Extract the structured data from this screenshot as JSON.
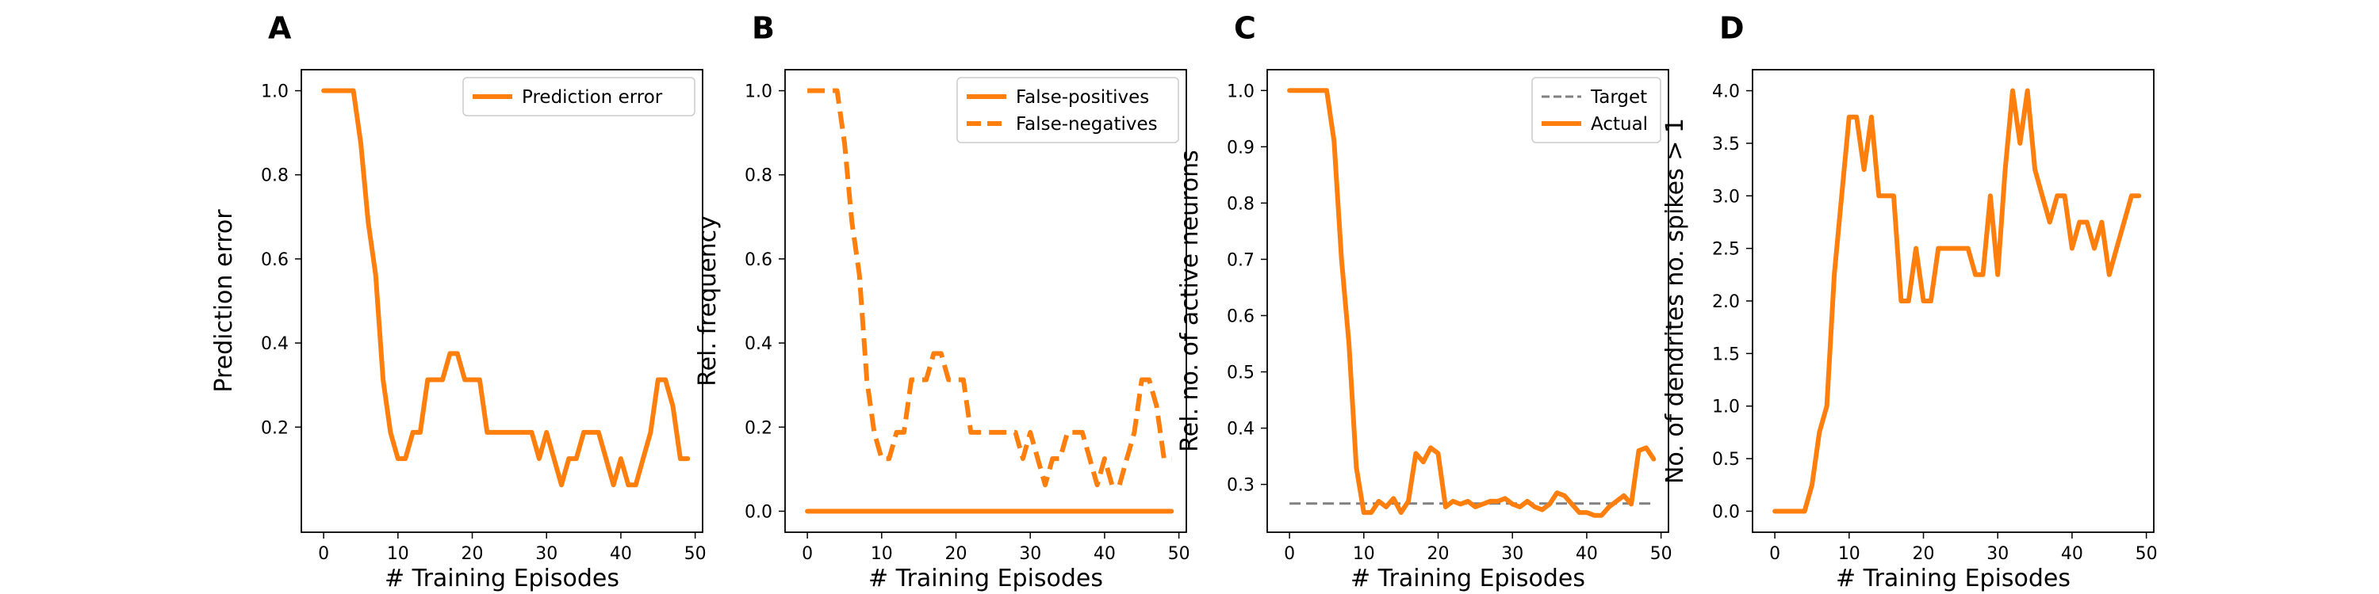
{
  "chart_data": [
    {
      "panel": "A",
      "type": "line",
      "xlabel": "# Training Episodes",
      "ylabel": "Prediction error",
      "xlim": [
        -3,
        51
      ],
      "ylim": [
        -0.05,
        1.05
      ],
      "xticks": [
        0,
        10,
        20,
        30,
        40,
        50
      ],
      "yticks": [
        0.2,
        0.4,
        0.6,
        0.8,
        1.0
      ],
      "yticks_fmt": 1,
      "legend_position": "upper-right",
      "series": [
        {
          "name": "Prediction error",
          "style": "solid",
          "color": "#ff7f0e",
          "x": [
            0,
            1,
            2,
            3,
            4,
            5,
            6,
            7,
            8,
            9,
            10,
            11,
            12,
            13,
            14,
            15,
            16,
            17,
            18,
            19,
            20,
            21,
            22,
            23,
            24,
            25,
            26,
            27,
            28,
            29,
            30,
            31,
            32,
            33,
            34,
            35,
            36,
            37,
            38,
            39,
            40,
            41,
            42,
            43,
            44,
            45,
            46,
            47,
            48,
            49
          ],
          "y": [
            1.0,
            1.0,
            1.0,
            1.0,
            1.0,
            0.875,
            0.6875,
            0.5625,
            0.3125,
            0.1875,
            0.125,
            0.125,
            0.1875,
            0.1875,
            0.3125,
            0.3125,
            0.3125,
            0.375,
            0.375,
            0.3125,
            0.3125,
            0.3125,
            0.1875,
            0.1875,
            0.1875,
            0.1875,
            0.1875,
            0.1875,
            0.1875,
            0.125,
            0.1875,
            0.125,
            0.0625,
            0.125,
            0.125,
            0.1875,
            0.1875,
            0.1875,
            0.125,
            0.0625,
            0.125,
            0.0625,
            0.0625,
            0.125,
            0.1875,
            0.3125,
            0.3125,
            0.25,
            0.125,
            0.125
          ]
        }
      ]
    },
    {
      "panel": "B",
      "type": "line",
      "xlabel": "# Training Episodes",
      "ylabel": "Rel. frequency",
      "xlim": [
        -3,
        51
      ],
      "ylim": [
        -0.05,
        1.05
      ],
      "xticks": [
        0,
        10,
        20,
        30,
        40,
        50
      ],
      "yticks": [
        0.0,
        0.2,
        0.4,
        0.6,
        0.8,
        1.0
      ],
      "yticks_fmt": 1,
      "legend_position": "upper-right",
      "series": [
        {
          "name": "False-positives",
          "style": "solid",
          "color": "#ff7f0e",
          "x": [
            0,
            49
          ],
          "y": [
            0.0,
            0.0
          ]
        },
        {
          "name": "False-negatives",
          "style": "dashed",
          "color": "#ff7f0e",
          "x": [
            0,
            1,
            2,
            3,
            4,
            5,
            6,
            7,
            8,
            9,
            10,
            11,
            12,
            13,
            14,
            15,
            16,
            17,
            18,
            19,
            20,
            21,
            22,
            23,
            24,
            25,
            26,
            27,
            28,
            29,
            30,
            31,
            32,
            33,
            34,
            35,
            36,
            37,
            38,
            39,
            40,
            41,
            42,
            43,
            44,
            45,
            46,
            47,
            48,
            49
          ],
          "y": [
            1.0,
            1.0,
            1.0,
            1.0,
            1.0,
            0.875,
            0.6875,
            0.5625,
            0.3125,
            0.1875,
            0.125,
            0.125,
            0.1875,
            0.1875,
            0.3125,
            0.3125,
            0.3125,
            0.375,
            0.375,
            0.3125,
            0.3125,
            0.3125,
            0.1875,
            0.1875,
            0.1875,
            0.1875,
            0.1875,
            0.1875,
            0.1875,
            0.125,
            0.1875,
            0.125,
            0.0625,
            0.125,
            0.125,
            0.1875,
            0.1875,
            0.1875,
            0.125,
            0.0625,
            0.125,
            0.0625,
            0.0625,
            0.125,
            0.1875,
            0.3125,
            0.3125,
            0.25,
            0.125,
            0.125
          ]
        }
      ]
    },
    {
      "panel": "C",
      "type": "line",
      "xlabel": "# Training Episodes",
      "ylabel": "Rel. no. of active neurons",
      "xlim": [
        -3,
        51
      ],
      "ylim": [
        0.215,
        1.037
      ],
      "xticks": [
        0,
        10,
        20,
        30,
        40,
        50
      ],
      "yticks": [
        0.3,
        0.4,
        0.5,
        0.6,
        0.7,
        0.8,
        0.9,
        1.0
      ],
      "yticks_fmt": 1,
      "legend_position": "upper-right",
      "series": [
        {
          "name": "Target",
          "style": "dashed",
          "color": "#808080",
          "x": [
            0,
            49
          ],
          "y": [
            0.266,
            0.266
          ]
        },
        {
          "name": "Actual",
          "style": "solid",
          "color": "#ff7f0e",
          "x": [
            0,
            1,
            2,
            3,
            4,
            5,
            6,
            7,
            8,
            9,
            10,
            11,
            12,
            13,
            14,
            15,
            16,
            17,
            18,
            19,
            20,
            21,
            22,
            23,
            24,
            25,
            26,
            27,
            28,
            29,
            30,
            31,
            32,
            33,
            34,
            35,
            36,
            37,
            38,
            39,
            40,
            41,
            42,
            43,
            44,
            45,
            46,
            47,
            48,
            49
          ],
          "y": [
            1.0,
            1.0,
            1.0,
            1.0,
            1.0,
            1.0,
            0.91,
            0.7,
            0.55,
            0.33,
            0.25,
            0.25,
            0.27,
            0.26,
            0.275,
            0.25,
            0.27,
            0.355,
            0.34,
            0.365,
            0.355,
            0.26,
            0.27,
            0.265,
            0.27,
            0.26,
            0.265,
            0.27,
            0.27,
            0.275,
            0.265,
            0.26,
            0.27,
            0.26,
            0.255,
            0.265,
            0.285,
            0.28,
            0.265,
            0.25,
            0.25,
            0.245,
            0.245,
            0.26,
            0.27,
            0.28,
            0.265,
            0.36,
            0.365,
            0.345
          ]
        }
      ]
    },
    {
      "panel": "D",
      "type": "line",
      "xlabel": "# Training Episodes",
      "ylabel": "No. of dendrites no. spikes > 1",
      "xlim": [
        -3,
        51
      ],
      "ylim": [
        -0.2,
        4.2
      ],
      "xticks": [
        0,
        10,
        20,
        30,
        40,
        50
      ],
      "yticks": [
        0.0,
        0.5,
        1.0,
        1.5,
        2.0,
        2.5,
        3.0,
        3.5,
        4.0
      ],
      "yticks_fmt": 1,
      "legend_position": "none",
      "series": [
        {
          "style": "solid",
          "color": "#ff7f0e",
          "x": [
            0,
            1,
            2,
            3,
            4,
            5,
            6,
            7,
            8,
            9,
            10,
            11,
            12,
            13,
            14,
            15,
            16,
            17,
            18,
            19,
            20,
            21,
            22,
            23,
            24,
            25,
            26,
            27,
            28,
            29,
            30,
            31,
            32,
            33,
            34,
            35,
            36,
            37,
            38,
            39,
            40,
            41,
            42,
            43,
            44,
            45,
            46,
            47,
            48,
            49
          ],
          "y": [
            0,
            0,
            0,
            0,
            0,
            0.25,
            0.75,
            1.0,
            2.25,
            3.0,
            3.75,
            3.75,
            3.25,
            3.75,
            3.0,
            3.0,
            3.0,
            2.0,
            2.0,
            2.5,
            2.0,
            2.0,
            2.5,
            2.5,
            2.5,
            2.5,
            2.5,
            2.25,
            2.25,
            3.0,
            2.25,
            3.25,
            4.0,
            3.5,
            4.0,
            3.25,
            3.0,
            2.75,
            3.0,
            3.0,
            2.5,
            2.75,
            2.75,
            2.5,
            2.75,
            2.25,
            2.5,
            2.75,
            3.0,
            3.0
          ]
        }
      ]
    }
  ]
}
